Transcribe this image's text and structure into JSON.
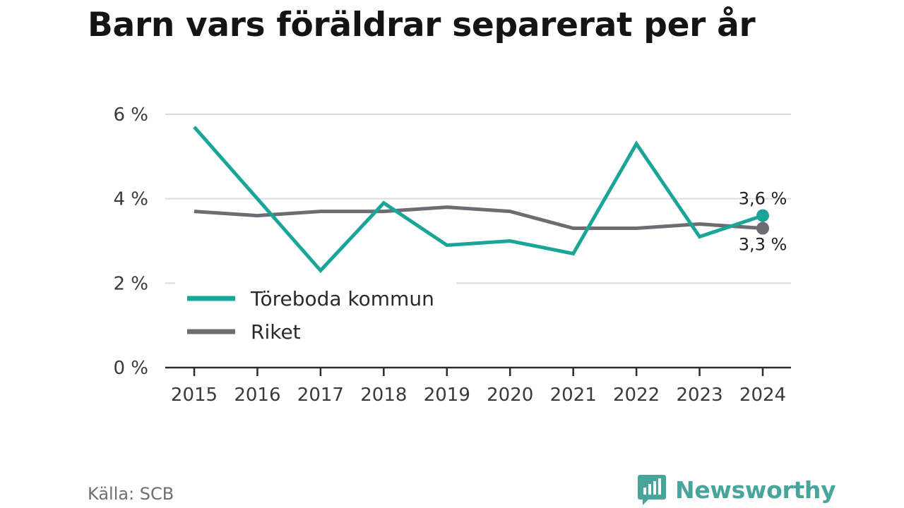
{
  "chart_data": {
    "type": "line",
    "title": "Barn vars föräldrar separerat per år",
    "x": [
      2015,
      2016,
      2017,
      2018,
      2019,
      2020,
      2021,
      2022,
      2023,
      2024
    ],
    "series": [
      {
        "name": "Töreboda kommun",
        "color": "#1aa598",
        "values": [
          5.7,
          4.0,
          2.3,
          3.9,
          2.9,
          3.0,
          2.7,
          5.3,
          3.1,
          3.6
        ]
      },
      {
        "name": "Riket",
        "color": "#6d6c72",
        "values": [
          3.7,
          3.6,
          3.7,
          3.7,
          3.8,
          3.7,
          3.3,
          3.3,
          3.4,
          3.3
        ]
      }
    ],
    "yticks": [
      {
        "value": 0,
        "label": "0 %"
      },
      {
        "value": 2,
        "label": "2 %"
      },
      {
        "value": 4,
        "label": "4 %"
      },
      {
        "value": 6,
        "label": "6 %"
      }
    ],
    "ylim": [
      0,
      6
    ],
    "end_labels": [
      "3,6 %",
      "3,3 %"
    ],
    "grid": true,
    "legend": "bottom-left inside plot"
  },
  "footer": {
    "source": "Källa: SCB",
    "brand": "Newsworthy"
  },
  "icons": {
    "brand_logo": "bar-chart-speech-bubble-icon"
  },
  "colors": {
    "brand": "#48a59c",
    "axis": "#2b2b2b",
    "grid": "#dcdcdc"
  }
}
